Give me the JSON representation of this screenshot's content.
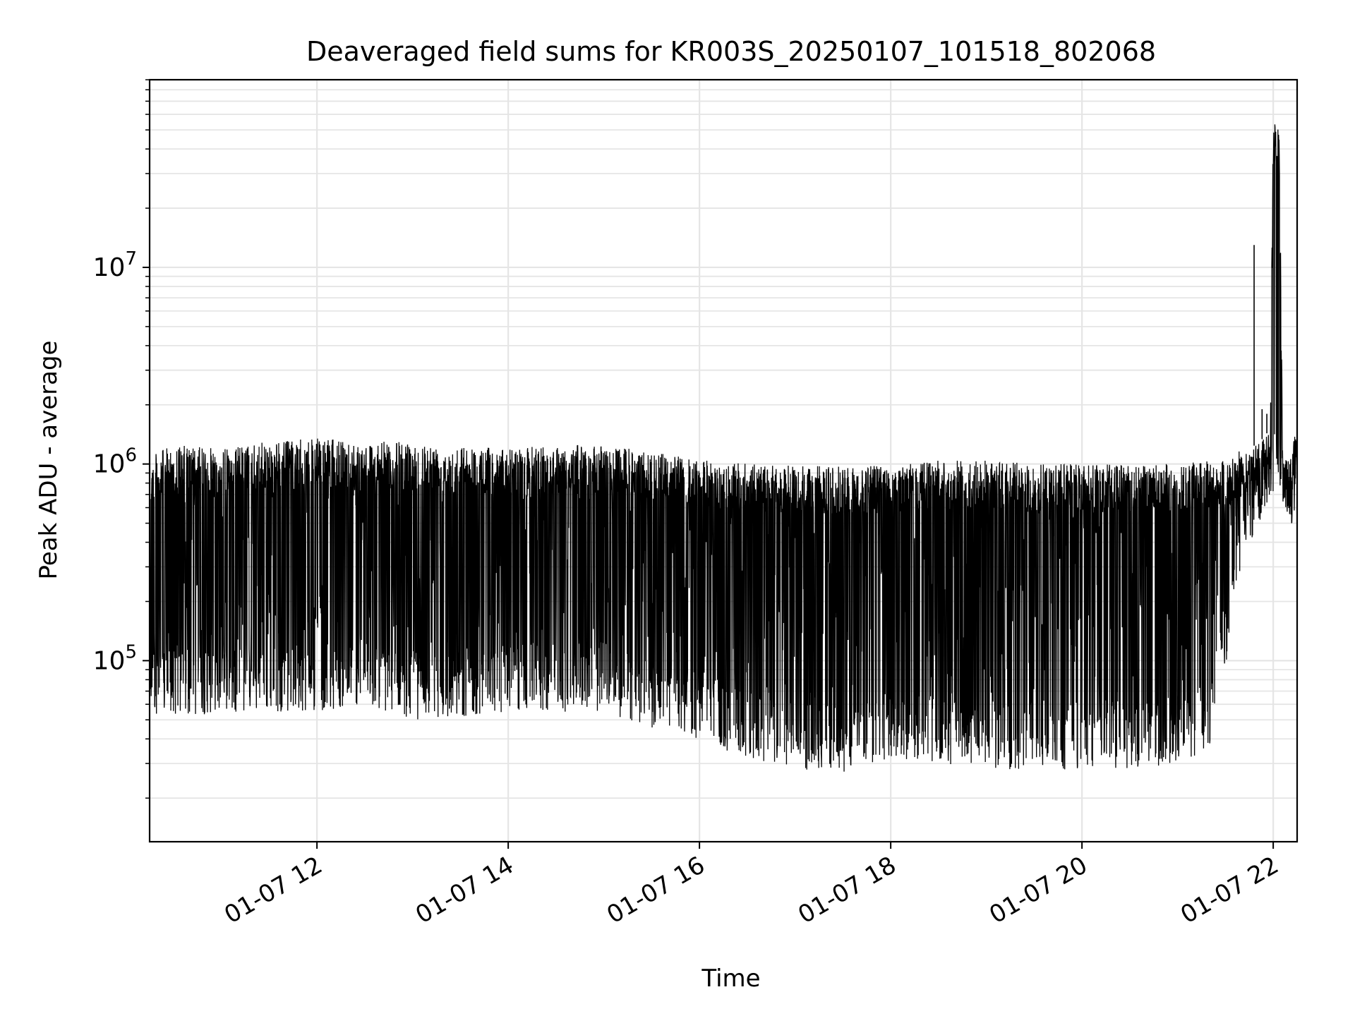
{
  "chart_data": {
    "type": "line",
    "title": "Deaveraged field sums for KR003S_20250107_101518_802068",
    "xlabel": "Time",
    "ylabel": "Peak ADU - average",
    "y_scale": "log",
    "grid": true,
    "line_color": "#000000",
    "grid_color": "#e5e5e5",
    "xlim": [
      "2025-01-07 10:15",
      "2025-01-07 22:15"
    ],
    "ylim": [
      12000,
      90000000
    ],
    "x_ticks": [
      {
        "value": "2025-01-07 12:00",
        "label": "01-07 12"
      },
      {
        "value": "2025-01-07 14:00",
        "label": "01-07 14"
      },
      {
        "value": "2025-01-07 16:00",
        "label": "01-07 16"
      },
      {
        "value": "2025-01-07 18:00",
        "label": "01-07 18"
      },
      {
        "value": "2025-01-07 20:00",
        "label": "01-07 20"
      },
      {
        "value": "2025-01-07 22:00",
        "label": "01-07 22"
      }
    ],
    "y_ticks": [
      {
        "value": 100000,
        "base": "10",
        "exp": "5"
      },
      {
        "value": 1000000,
        "base": "10",
        "exp": "6"
      },
      {
        "value": 10000000,
        "base": "10",
        "exp": "7"
      }
    ],
    "series": [
      {
        "x": [
          "2025-01-07 10:15",
          "2025-01-07 10:30",
          "2025-01-07 11:00",
          "2025-01-07 11:30",
          "2025-01-07 12:00",
          "2025-01-07 12:30",
          "2025-01-07 13:00",
          "2025-01-07 13:30",
          "2025-01-07 14:00",
          "2025-01-07 14:30",
          "2025-01-07 15:00",
          "2025-01-07 15:30",
          "2025-01-07 16:00",
          "2025-01-07 16:30",
          "2025-01-07 17:00",
          "2025-01-07 17:30",
          "2025-01-07 18:00",
          "2025-01-07 18:30",
          "2025-01-07 19:00",
          "2025-01-07 19:30",
          "2025-01-07 20:00",
          "2025-01-07 20:30",
          "2025-01-07 21:00",
          "2025-01-07 21:20",
          "2025-01-07 21:30",
          "2025-01-07 21:40",
          "2025-01-07 21:50",
          "2025-01-07 21:55",
          "2025-01-07 21:58",
          "2025-01-07 22:00",
          "2025-01-07 22:02",
          "2025-01-07 22:04",
          "2025-01-07 22:06",
          "2025-01-07 22:10",
          "2025-01-07 22:15"
        ],
        "upper": [
          1100000,
          1250000,
          1200000,
          1300000,
          1350000,
          1300000,
          1300000,
          1250000,
          1200000,
          1250000,
          1250000,
          1150000,
          1050000,
          1000000,
          980000,
          980000,
          1000000,
          1050000,
          1050000,
          1000000,
          1000000,
          1000000,
          1000000,
          1050000,
          1100000,
          1200000,
          1250000,
          1400000,
          1500000,
          52000000,
          55000000,
          47000000,
          1200000,
          1000000,
          1600000
        ],
        "lower": [
          55000,
          50000,
          55000,
          55000,
          55000,
          60000,
          50000,
          52000,
          55000,
          55000,
          55000,
          45000,
          40000,
          30000,
          28000,
          27000,
          32000,
          30000,
          28000,
          28000,
          28000,
          28000,
          30000,
          35000,
          90000,
          300000,
          500000,
          560000,
          580000,
          600000,
          640000,
          620000,
          520000,
          480000,
          550000
        ]
      }
    ],
    "spikes": [
      {
        "x": "2025-01-07 21:48",
        "value": 13000000
      },
      {
        "x": "2025-01-07 21:53",
        "value": 1900000
      },
      {
        "x": "2025-01-07 21:56",
        "value": 1800000
      }
    ]
  }
}
